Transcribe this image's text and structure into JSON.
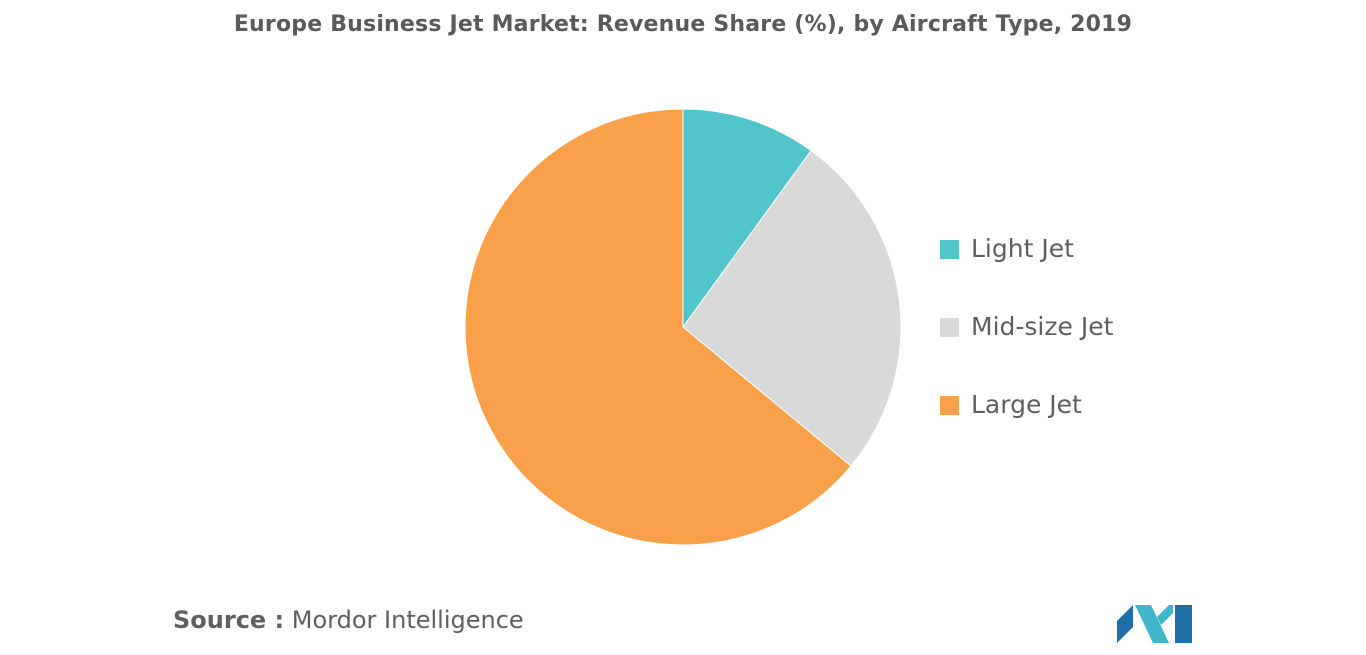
{
  "chart_data": {
    "type": "pie",
    "title": "Europe Business Jet Market: Revenue Share (%), by Aircraft Type, 2019",
    "categories": [
      "Light Jet",
      "Mid-size Jet",
      "Large Jet"
    ],
    "values": [
      10,
      26,
      64
    ],
    "colors": [
      "#52c5cb",
      "#d9d9d9",
      "#f9a04a"
    ],
    "start_angle_deg": 0,
    "direction": "clockwise",
    "legend_position": "right"
  },
  "footer": {
    "source_label": "Source :",
    "source_text": "Mordor Intelligence"
  },
  "logo": {
    "name": "mordor-intelligence-logo",
    "colors": [
      "#1f6fa8",
      "#3fb6c9"
    ]
  }
}
